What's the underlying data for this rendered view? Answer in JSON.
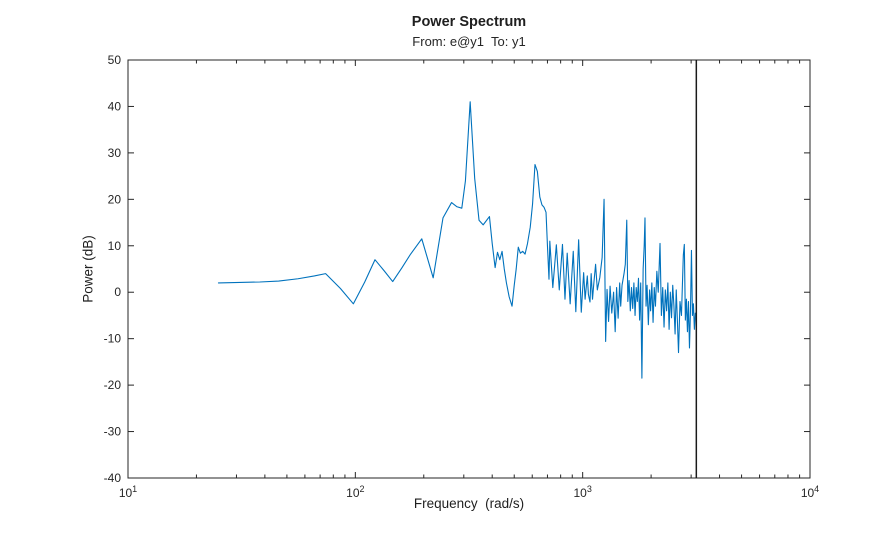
{
  "chart_data": {
    "type": "line",
    "title": "Power Spectrum",
    "subtitle": "From: e@y1  To: y1",
    "xlabel": "Frequency  (rad/s)",
    "ylabel": "Power (dB)",
    "xscale": "log",
    "xlim": [
      10,
      10000
    ],
    "ylim": [
      -40,
      50
    ],
    "yticks": [
      50,
      40,
      30,
      20,
      10,
      0,
      -10,
      -20,
      -30,
      -40
    ],
    "xtick_base": "10",
    "xtick_exponents": [
      1,
      2,
      3,
      4
    ],
    "grid": false,
    "legend": null,
    "colors": {
      "line": "#0072bd",
      "axis": "#262626",
      "vline": "#1a1a1a",
      "background": "#ffffff"
    },
    "vline_x": 3162,
    "series": [
      {
        "name": "power-spectrum",
        "points": [
          [
            25,
            2
          ],
          [
            31,
            2.1
          ],
          [
            38,
            2.2
          ],
          [
            46,
            2.4
          ],
          [
            56,
            2.9
          ],
          [
            66,
            3.5
          ],
          [
            74,
            4
          ],
          [
            86,
            0.8
          ],
          [
            98,
            -2.5
          ],
          [
            110,
            2.2
          ],
          [
            122,
            7
          ],
          [
            134,
            4.6
          ],
          [
            146,
            2.3
          ],
          [
            160,
            5.2
          ],
          [
            175,
            8.2
          ],
          [
            196,
            11.5
          ],
          [
            220,
            3.1
          ],
          [
            243,
            16
          ],
          [
            265,
            19.3
          ],
          [
            280,
            18.4
          ],
          [
            294,
            18.1
          ],
          [
            305,
            24
          ],
          [
            320,
            41
          ],
          [
            335,
            24.5
          ],
          [
            350,
            15.5
          ],
          [
            365,
            14.5
          ],
          [
            389,
            16.3
          ],
          [
            400,
            10.5
          ],
          [
            412,
            5.3
          ],
          [
            422,
            8.6
          ],
          [
            432,
            7
          ],
          [
            442,
            8.8
          ],
          [
            452,
            5
          ],
          [
            462,
            2
          ],
          [
            475,
            -1
          ],
          [
            489,
            -3
          ],
          [
            500,
            1.5
          ],
          [
            510,
            5
          ],
          [
            521,
            9.7
          ],
          [
            532,
            8.4
          ],
          [
            545,
            8.8
          ],
          [
            558,
            8.2
          ],
          [
            572,
            10.5
          ],
          [
            588,
            14
          ],
          [
            602,
            19
          ],
          [
            617,
            27.5
          ],
          [
            632,
            26
          ],
          [
            648,
            20.5
          ],
          [
            662,
            18.8
          ],
          [
            676,
            18.3
          ],
          [
            690,
            17.2
          ],
          [
            700,
            10
          ],
          [
            711,
            2.8
          ],
          [
            717,
            11
          ],
          [
            739,
            1
          ],
          [
            766,
            10.2
          ],
          [
            789,
            0.5
          ],
          [
            815,
            10.3
          ],
          [
            836,
            -1.5
          ],
          [
            855,
            8.4
          ],
          [
            881,
            -2.5
          ],
          [
            909,
            8.8
          ],
          [
            933,
            -4.2
          ],
          [
            960,
            11.3
          ],
          [
            986,
            -4.3
          ],
          [
            1010,
            4.2
          ],
          [
            1025,
            -1.5
          ],
          [
            1048,
            3.5
          ],
          [
            1060,
            -0.5
          ],
          [
            1077,
            -2.1
          ],
          [
            1090,
            4
          ],
          [
            1105,
            -1.5
          ],
          [
            1120,
            2
          ],
          [
            1140,
            6
          ],
          [
            1160,
            0.5
          ],
          [
            1190,
            3.2
          ],
          [
            1218,
            7.5
          ],
          [
            1242,
            20
          ],
          [
            1262,
            -10.6
          ],
          [
            1280,
            0.6
          ],
          [
            1300,
            -6.3
          ],
          [
            1320,
            1.3
          ],
          [
            1343,
            -4.5
          ],
          [
            1368,
            0
          ],
          [
            1390,
            -8.5
          ],
          [
            1410,
            1
          ],
          [
            1432,
            -5.6
          ],
          [
            1455,
            2
          ],
          [
            1470,
            -3
          ],
          [
            1490,
            1.5
          ],
          [
            1520,
            4
          ],
          [
            1540,
            6
          ],
          [
            1563,
            15.5
          ],
          [
            1580,
            -2
          ],
          [
            1600,
            2.5
          ],
          [
            1620,
            -4
          ],
          [
            1640,
            1
          ],
          [
            1660,
            -3.5
          ],
          [
            1680,
            2
          ],
          [
            1700,
            -5
          ],
          [
            1720,
            1
          ],
          [
            1740,
            -2
          ],
          [
            1760,
            3
          ],
          [
            1780,
            -6
          ],
          [
            1800,
            2
          ],
          [
            1822,
            -18.5
          ],
          [
            1845,
            5
          ],
          [
            1865,
            10
          ],
          [
            1880,
            16
          ],
          [
            1900,
            -3
          ],
          [
            1920,
            1.5
          ],
          [
            1945,
            -7
          ],
          [
            1970,
            0.5
          ],
          [
            1990,
            -4
          ],
          [
            2015,
            2
          ],
          [
            2040,
            -6.5
          ],
          [
            2065,
            1
          ],
          [
            2090,
            -3
          ],
          [
            2120,
            4.5
          ],
          [
            2150,
            0
          ],
          [
            2189,
            10.5
          ],
          [
            2220,
            -5
          ],
          [
            2250,
            1
          ],
          [
            2280,
            -7.5
          ],
          [
            2310,
            0.5
          ],
          [
            2340,
            -4
          ],
          [
            2370,
            2
          ],
          [
            2400,
            -8
          ],
          [
            2430,
            0
          ],
          [
            2460,
            -5.5
          ],
          [
            2490,
            1.5
          ],
          [
            2520,
            -3
          ],
          [
            2550,
            -9
          ],
          [
            2580,
            0.5
          ],
          [
            2610,
            -6
          ],
          [
            2640,
            -13
          ],
          [
            2680,
            -2
          ],
          [
            2720,
            -5
          ],
          [
            2772,
            8
          ],
          [
            2800,
            10.3
          ],
          [
            2830,
            -6
          ],
          [
            2860,
            -1.5
          ],
          [
            2890,
            -8.5
          ],
          [
            2920,
            -2
          ],
          [
            2950,
            -12
          ],
          [
            2980,
            -4
          ],
          [
            3010,
            9
          ],
          [
            3040,
            -5
          ],
          [
            3070,
            -2.5
          ],
          [
            3100,
            -8
          ],
          [
            3130,
            -4.5
          ]
        ]
      }
    ]
  }
}
